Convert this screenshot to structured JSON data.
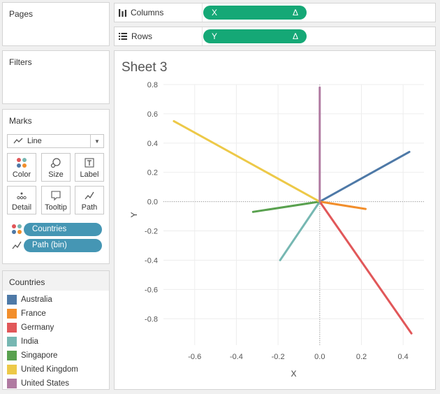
{
  "pages": {
    "title": "Pages"
  },
  "filters": {
    "title": "Filters"
  },
  "marks": {
    "title": "Marks",
    "mark_type": "Line",
    "buttons": {
      "color": "Color",
      "size": "Size",
      "label": "Label",
      "detail": "Detail",
      "tooltip": "Tooltip",
      "path": "Path"
    },
    "fields": {
      "color_field": "Countries",
      "path_field": "Path (bin)"
    }
  },
  "legend": {
    "title": "Countries",
    "items": [
      {
        "label": "Australia",
        "color": "#4e79a7"
      },
      {
        "label": "France",
        "color": "#f28e2b"
      },
      {
        "label": "Germany",
        "color": "#e15759"
      },
      {
        "label": "India",
        "color": "#76b7b2"
      },
      {
        "label": "Singapore",
        "color": "#59a14f"
      },
      {
        "label": "United Kingdom",
        "color": "#edc948"
      },
      {
        "label": "United States",
        "color": "#b07aa1"
      }
    ]
  },
  "shelves": {
    "columns": {
      "label": "Columns",
      "pill": "X",
      "pill_icon": "Δ"
    },
    "rows": {
      "label": "Rows",
      "pill": "Y",
      "pill_icon": "Δ"
    }
  },
  "colors": {
    "green_pill": "#15a876",
    "blue_pill": "#4596b4"
  },
  "sheet": {
    "title": "Sheet 3"
  },
  "chart_data": {
    "type": "line",
    "xlabel": "X",
    "ylabel": "Y",
    "xlim": [
      -0.75,
      0.5
    ],
    "ylim": [
      -0.98,
      0.8
    ],
    "xticks": [
      -0.6,
      -0.4,
      -0.2,
      0.0,
      0.2,
      0.4
    ],
    "yticks": [
      0.8,
      0.6,
      0.4,
      0.2,
      0.0,
      -0.2,
      -0.4,
      -0.6,
      -0.8
    ],
    "xtick_labels": [
      "-0.6",
      "-0.4",
      "-0.2",
      "0.0",
      "0.2",
      "0.4"
    ],
    "ytick_labels": [
      "0.8",
      "0.6",
      "0.4",
      "0.2",
      "0.0",
      "-0.2",
      "-0.4",
      "-0.6",
      "-0.8"
    ],
    "grid": true,
    "series": [
      {
        "name": "Australia",
        "color": "#4e79a7",
        "points": [
          [
            0,
            0
          ],
          [
            0.43,
            0.34
          ]
        ]
      },
      {
        "name": "France",
        "color": "#f28e2b",
        "points": [
          [
            0,
            0
          ],
          [
            0.22,
            -0.05
          ]
        ]
      },
      {
        "name": "Germany",
        "color": "#e15759",
        "points": [
          [
            0,
            0
          ],
          [
            0.44,
            -0.9
          ]
        ]
      },
      {
        "name": "India",
        "color": "#76b7b2",
        "points": [
          [
            0,
            0
          ],
          [
            -0.19,
            -0.4
          ]
        ]
      },
      {
        "name": "Singapore",
        "color": "#59a14f",
        "points": [
          [
            0,
            0
          ],
          [
            -0.32,
            -0.07
          ]
        ]
      },
      {
        "name": "United Kingdom",
        "color": "#edc948",
        "points": [
          [
            0,
            0
          ],
          [
            -0.7,
            0.55
          ]
        ]
      },
      {
        "name": "United States",
        "color": "#b07aa1",
        "points": [
          [
            0,
            0
          ],
          [
            0.0,
            0.78
          ]
        ]
      }
    ]
  }
}
